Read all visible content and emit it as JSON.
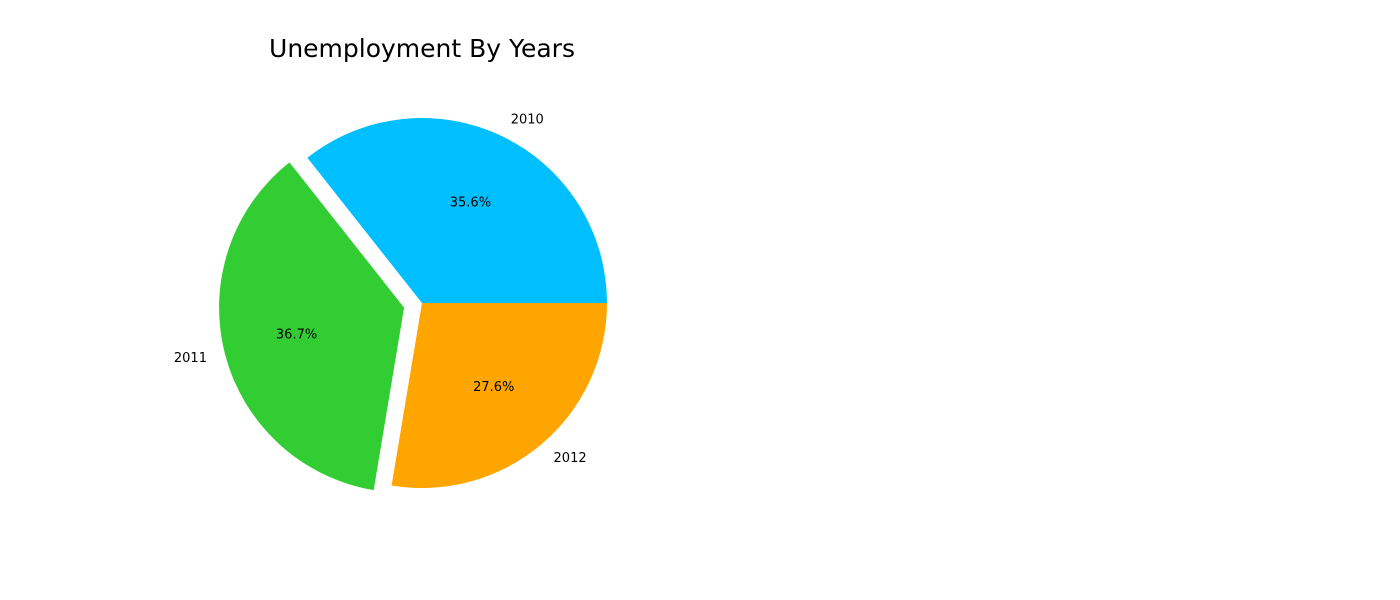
{
  "chart_data": {
    "type": "pie",
    "title": "Unemployment By Years",
    "slices": [
      {
        "label": "2010",
        "value": 35.6,
        "pct_label": "35.6%",
        "color": "#00BFFF",
        "exploded": false
      },
      {
        "label": "2011",
        "value": 36.7,
        "pct_label": "36.7%",
        "color": "#32CD32",
        "exploded": true
      },
      {
        "label": "2012",
        "value": 27.6,
        "pct_label": "27.6%",
        "color": "#FFA500",
        "exploded": false
      }
    ],
    "start_angle_deg": 0,
    "direction": "counterclockwise",
    "legend": "none"
  }
}
